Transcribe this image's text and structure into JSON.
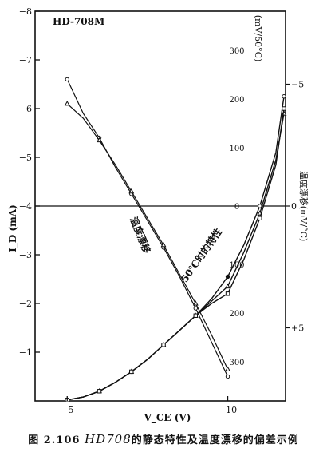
{
  "chart_data": {
    "type": "line",
    "title": "HD-708M",
    "xlabel": "V_CE (V)",
    "ylabel": "I_D (mA)",
    "x_ticks": [
      -5,
      -10
    ],
    "x_tick_labels": [
      "−5",
      "−10"
    ],
    "y_ticks": [
      -8,
      -7,
      -6,
      -5,
      -4,
      -3,
      -2,
      -1
    ],
    "y_tick_labels": [
      "−8",
      "−7",
      "−6",
      "−5",
      "−4",
      "−3",
      "−2",
      "−1"
    ],
    "xlim": [
      -4,
      -11.8
    ],
    "ylim": [
      0,
      -8
    ],
    "inner_axis_label": "(mV/50°C)",
    "inner_axis_ticks": [
      "300",
      "200",
      "100",
      "0",
      "100",
      "200",
      "300"
    ],
    "inner_axis_ytick_values": [
      -7.2,
      -6.2,
      -5.2,
      -4,
      -2.8,
      -1.8,
      -0.8
    ],
    "right_axis_label": "温度漂移(mV/°C)",
    "right_axis_ticks": [
      "−5",
      "0",
      "+5"
    ],
    "right_axis_ytick_values": [
      -6.5,
      -4,
      -1.5
    ],
    "reference_line_y": -4,
    "series": [
      {
        "name": "温度漂移",
        "curves": [
          {
            "x": [
              -5.0,
              -5.5,
              -6.0,
              -6.5,
              -7.0,
              -7.5,
              -8.0,
              -8.5,
              -9.0,
              -9.5,
              -10.0
            ],
            "y": [
              -6.6,
              -5.9,
              -5.4,
              -4.8,
              -4.25,
              -3.7,
              -3.15,
              -2.55,
              -1.9,
              -1.2,
              -0.5
            ]
          },
          {
            "x": [
              -5.0,
              -5.5,
              -6.0,
              -6.5,
              -7.0,
              -7.5,
              -8.0,
              -8.5,
              -9.0,
              -9.5,
              -10.0
            ],
            "y": [
              -6.1,
              -5.8,
              -5.35,
              -4.85,
              -4.3,
              -3.75,
              -3.2,
              -2.6,
              -2.0,
              -1.35,
              -0.65
            ]
          }
        ]
      },
      {
        "name": "50℃时的特性",
        "curves": [
          {
            "x": [
              -5.0,
              -5.5,
              -6.0,
              -6.5,
              -7.0,
              -7.5,
              -8.0,
              -8.5,
              -9.0,
              -9.5,
              -10.0,
              -10.5,
              -11.0,
              -11.5,
              -11.75
            ],
            "y": [
              -0.02,
              -0.08,
              -0.2,
              -0.38,
              -0.6,
              -0.85,
              -1.15,
              -1.45,
              -1.75,
              -2.1,
              -2.55,
              -3.2,
              -4.0,
              -5.1,
              -6.25
            ]
          },
          {
            "x": [
              -5.0,
              -5.5,
              -6.0,
              -6.5,
              -7.0,
              -7.5,
              -8.0,
              -8.5,
              -9.0,
              -9.5,
              -10.0,
              -10.5,
              -11.0,
              -11.5,
              -11.75
            ],
            "y": [
              -0.02,
              -0.08,
              -0.2,
              -0.38,
              -0.6,
              -0.85,
              -1.15,
              -1.45,
              -1.75,
              -2.05,
              -2.35,
              -3.05,
              -3.85,
              -4.95,
              -5.9
            ]
          },
          {
            "x": [
              -5.0,
              -5.5,
              -6.0,
              -6.5,
              -7.0,
              -7.5,
              -8.0,
              -8.5,
              -9.0,
              -9.5,
              -10.0,
              -10.5,
              -11.0,
              -11.5,
              -11.75
            ],
            "y": [
              -0.02,
              -0.08,
              -0.2,
              -0.38,
              -0.6,
              -0.85,
              -1.15,
              -1.45,
              -1.75,
              -2.0,
              -2.2,
              -2.9,
              -3.75,
              -4.85,
              -6.0
            ]
          }
        ]
      }
    ]
  },
  "caption": {
    "prefix": "图 2.106",
    "model": "HD708",
    "text": "的静态特性及温度漂移的偏差示例"
  }
}
